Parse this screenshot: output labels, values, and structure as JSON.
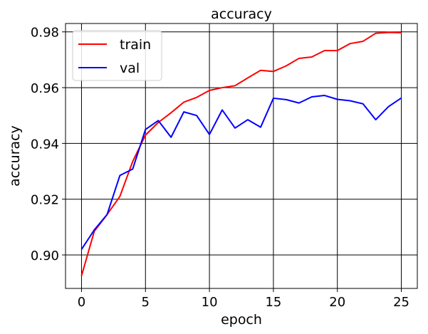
{
  "chart_data": {
    "type": "line",
    "title": "accuracy",
    "xlabel": "epoch",
    "ylabel": "accuracy",
    "xlim": [
      -1.25,
      26.25
    ],
    "ylim": [
      0.888,
      0.983
    ],
    "xticks": [
      0,
      5,
      10,
      15,
      20,
      25
    ],
    "yticks": [
      0.9,
      0.92,
      0.94,
      0.96,
      0.98
    ],
    "ytick_labels": [
      "0.90",
      "0.92",
      "0.94",
      "0.96",
      "0.98"
    ],
    "grid": true,
    "legend_position": "top-left",
    "x": [
      0,
      1,
      2,
      3,
      4,
      5,
      6,
      7,
      8,
      9,
      10,
      11,
      12,
      13,
      14,
      15,
      16,
      17,
      18,
      19,
      20,
      21,
      22,
      23,
      24,
      25
    ],
    "series": [
      {
        "name": "train",
        "color": "#ff0000",
        "values": [
          0.8925,
          0.9085,
          0.9145,
          0.921,
          0.9335,
          0.943,
          0.9475,
          0.951,
          0.9548,
          0.9565,
          0.959,
          0.96,
          0.9607,
          0.9635,
          0.9662,
          0.9658,
          0.9678,
          0.9705,
          0.971,
          0.9733,
          0.9733,
          0.9758,
          0.9766,
          0.9795,
          0.9798,
          0.9797
        ]
      },
      {
        "name": "val",
        "color": "#0000ff",
        "values": [
          0.902,
          0.909,
          0.9145,
          0.9285,
          0.9308,
          0.945,
          0.9482,
          0.9422,
          0.9513,
          0.95,
          0.9432,
          0.952,
          0.9455,
          0.9485,
          0.9458,
          0.9562,
          0.9557,
          0.9545,
          0.9567,
          0.9572,
          0.9558,
          0.9553,
          0.9542,
          0.9485,
          0.9532,
          0.9563
        ]
      }
    ]
  }
}
